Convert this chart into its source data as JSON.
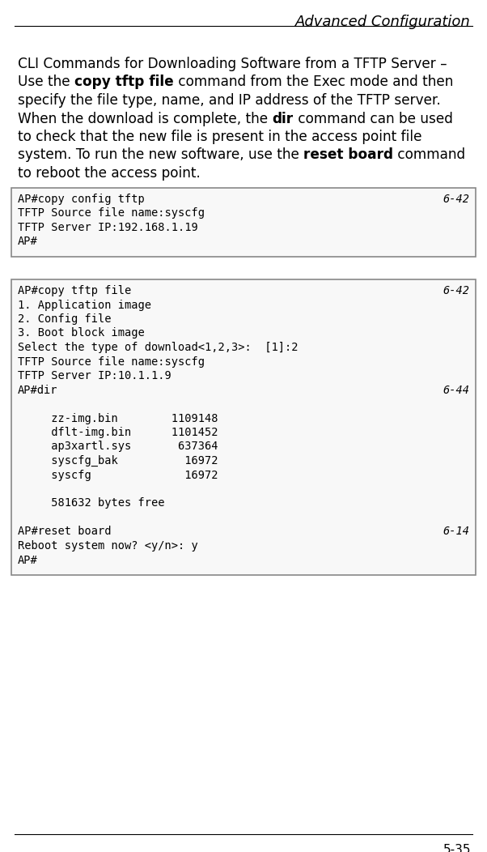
{
  "title": "Advanced Configuration",
  "page_num": "5-35",
  "bg_color": "#ffffff",
  "box_bg": "#f8f8f8",
  "box_border": "#888888",
  "title_color": "#000000",
  "body_color": "#000000",
  "mono_color": "#000000",
  "fig_width": 6.02,
  "fig_height": 10.52,
  "dpi": 100,
  "body_lines": [
    [
      {
        "text": "CLI Commands for Downloading Software from a TFTP Server –",
        "bold": false
      },
      {
        "text": "",
        "bold": false
      }
    ],
    [
      {
        "text": "Use the ",
        "bold": false
      },
      {
        "text": "copy tftp file",
        "bold": true
      },
      {
        "text": " command from the Exec mode and then",
        "bold": false
      }
    ],
    [
      {
        "text": "specify the file type, name, and IP address of the TFTP server.",
        "bold": false
      }
    ],
    [
      {
        "text": "When the download is complete, the ",
        "bold": false
      },
      {
        "text": "dir",
        "bold": true
      },
      {
        "text": " command can be used",
        "bold": false
      }
    ],
    [
      {
        "text": "to check that the new file is present in the access point file",
        "bold": false
      }
    ],
    [
      {
        "text": "system. To run the new software, use the ",
        "bold": false
      },
      {
        "text": "reset board",
        "bold": true
      },
      {
        "text": " command",
        "bold": false
      }
    ],
    [
      {
        "text": "to reboot the access point.",
        "bold": false
      }
    ]
  ],
  "box1_lines": [
    {
      "left": "AP#copy config tftp",
      "right": "6-42"
    },
    {
      "left": "TFTP Source file name:syscfg",
      "right": ""
    },
    {
      "left": "TFTP Server IP:192.168.1.19",
      "right": ""
    },
    {
      "left": "AP#",
      "right": ""
    }
  ],
  "box2_lines": [
    {
      "left": "AP#copy tftp file",
      "right": "6-42"
    },
    {
      "left": "1. Application image",
      "right": ""
    },
    {
      "left": "2. Config file",
      "right": ""
    },
    {
      "left": "3. Boot block image",
      "right": ""
    },
    {
      "left": "Select the type of download<1,2,3>:  [1]:2",
      "right": ""
    },
    {
      "left": "TFTP Source file name:syscfg",
      "right": ""
    },
    {
      "left": "TFTP Server IP:10.1.1.9",
      "right": ""
    },
    {
      "left": "AP#dir",
      "right": "6-44"
    },
    {
      "left": "",
      "right": ""
    },
    {
      "left": "     zz-img.bin        1109148",
      "right": ""
    },
    {
      "left": "     dflt-img.bin      1101452",
      "right": ""
    },
    {
      "left": "     ap3xartl.sys       637364",
      "right": ""
    },
    {
      "left": "     syscfg_bak          16972",
      "right": ""
    },
    {
      "left": "     syscfg              16972",
      "right": ""
    },
    {
      "left": "",
      "right": ""
    },
    {
      "left": "     581632 bytes free",
      "right": ""
    },
    {
      "left": "",
      "right": ""
    },
    {
      "left": "AP#reset board",
      "right": "6-14"
    },
    {
      "left": "Reboot system now? <y/n>: y",
      "right": ""
    },
    {
      "left": "AP#",
      "right": ""
    }
  ]
}
